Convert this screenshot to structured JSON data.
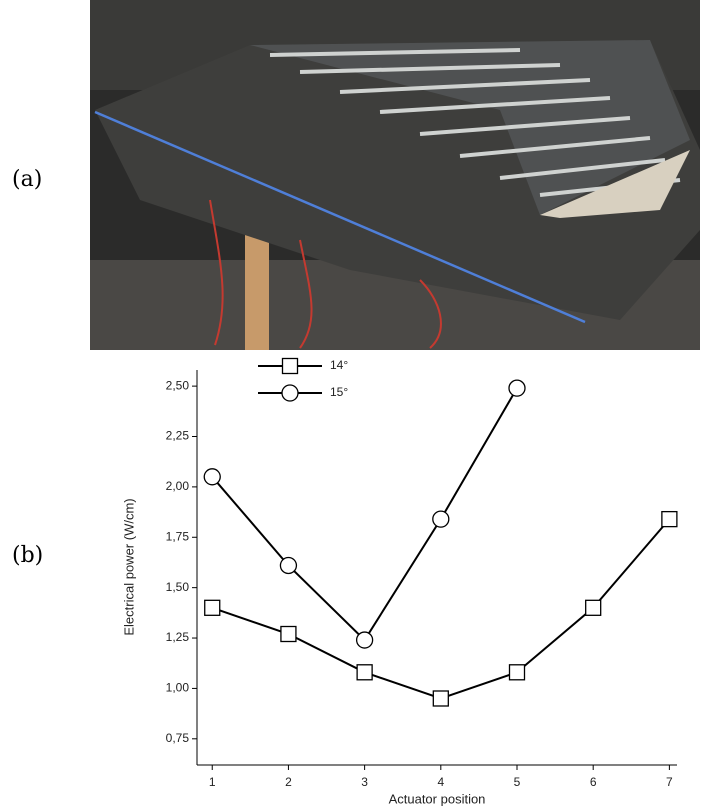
{
  "labels": [
    "(a)",
    "(b)"
  ],
  "chart_data": {
    "type": "line",
    "xlabel": "Actuator position",
    "ylabel": "Electrical power (W/cm)",
    "x": [
      1,
      2,
      3,
      4,
      5,
      6,
      7
    ],
    "xlim": [
      0.8,
      7.1
    ],
    "xticks": [
      1,
      2,
      3,
      4,
      5,
      6,
      7
    ],
    "ylim": [
      0.62,
      2.58
    ],
    "yticks": [
      {
        "value": 0.75,
        "label": "0,75"
      },
      {
        "value": 1.0,
        "label": "1,00"
      },
      {
        "value": 1.25,
        "label": "1,25"
      },
      {
        "value": 1.5,
        "label": "1,50"
      },
      {
        "value": 1.75,
        "label": "1,75"
      },
      {
        "value": 2.0,
        "label": "2,00"
      },
      {
        "value": 2.25,
        "label": "2,25"
      },
      {
        "value": 2.5,
        "label": "2,50"
      }
    ],
    "grid": false,
    "legend": "upper left",
    "series": [
      {
        "name": "14°",
        "color": "#000000",
        "marker": "square",
        "values": [
          1.4,
          1.27,
          1.08,
          0.95,
          1.08,
          1.4,
          1.84
        ]
      },
      {
        "name": "15°",
        "color": "#000000",
        "marker": "circle",
        "values": [
          2.05,
          1.61,
          1.24,
          1.84,
          2.49,
          null,
          null
        ]
      }
    ]
  }
}
